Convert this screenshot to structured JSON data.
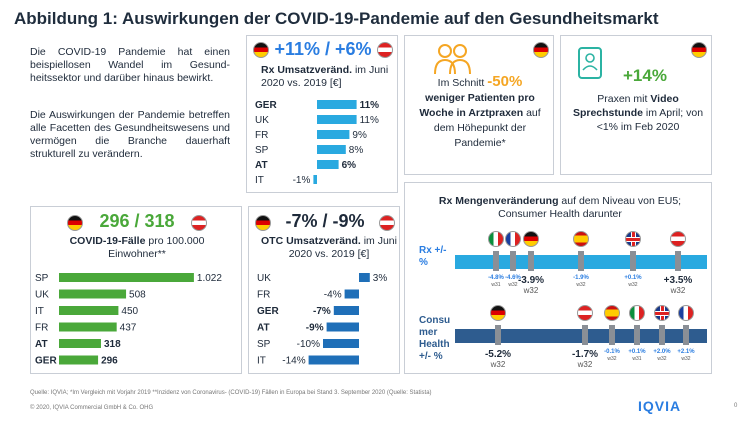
{
  "page": {
    "title": "Abbildung 1: Auswirkungen der COVID-19-Pandemie auf den Gesundheitsmarkt",
    "intro_p1": "Die COVID-19 Pandemie hat einen beispiellosen Wandel im Gesund- heitssektor und darüber hinaus bewirkt.",
    "intro_p2": "Die Auswirkungen der Pandemie betreffen alle Facetten des Gesundheitswesens und vermögen die Branche dauerhaft strukturell zu verändern.",
    "footnote": "Quelle: IQVIA; *Im Vergleich mit Vorjahr 2019 **Inzidenz von Coronavirus- (COVID-19) Fällen in Europa bei Stand 3. September 2020 (Quelle: Statista)",
    "copyright": "© 2020, IQVIA Commercial GmbH & Co. OHG",
    "logo": "IQVIA",
    "page_num": "0"
  },
  "rx_card": {
    "headline": "+11% / +6%",
    "sub_bold": "Rx Umsatzveränd.",
    "sub_rest": " im Juni 2020 vs. 2019 [€]"
  },
  "patients_card": {
    "prefix": "Im Schnitt ",
    "big": "-50%",
    "bold": "weniger Patienten pro Woche in Arztpraxen",
    "rest": " auf dem Höhepunkt der Pandemie*"
  },
  "video_card": {
    "big": "+14%",
    "text_a": "Praxen mit ",
    "text_bold": "Video Sprechstunde",
    "text_b": " im April; von <1% im Feb 2020"
  },
  "covid_card": {
    "headline": "296 / 318",
    "sub_bold": "COVID-19-Fälle",
    "sub_rest": " pro 100.000 Einwohner**"
  },
  "otc_card": {
    "headline": "-7% / -9%",
    "sub_bold": "OTC Umsatzveränd.",
    "sub_rest": " im Juni 2020 vs. 2019 [€]"
  },
  "volume_card": {
    "title_bold": "Rx Mengenveränderung",
    "title_rest": " auf dem Niveau von EU5; Consumer Health darunter",
    "rx_label": "Rx +/- %",
    "ch_label": "Consu mer Health +/- %",
    "rx_markers": [
      {
        "value": "-4.8%",
        "week": "w31",
        "flag": "it"
      },
      {
        "value": "-4.6%",
        "week": "w32",
        "flag": "fr"
      },
      {
        "value": "-3.9%",
        "week": "w32",
        "flag": "de"
      },
      {
        "value": "-1.9%",
        "week": "w32",
        "flag": "es"
      },
      {
        "value": "+0.1%",
        "week": "w32",
        "flag": "uk"
      },
      {
        "value": "+3.5%",
        "week": "w32",
        "flag": "at"
      }
    ],
    "ch_markers": [
      {
        "value": "-5.2%",
        "week": "w32",
        "flag": "de"
      },
      {
        "value": "-1.7%",
        "week": "w32",
        "flag": "at"
      },
      {
        "value": "-0.1%",
        "week": "w32",
        "flag": "es"
      },
      {
        "value": "+0.1%",
        "week": "w31",
        "flag": "it"
      },
      {
        "value": "+2.0%",
        "week": "w32",
        "flag": "uk"
      },
      {
        "value": "+2.1%",
        "week": "w32",
        "flag": "fr"
      }
    ]
  },
  "colors": {
    "accent_blue": "#2a7de1",
    "bar_blue": "#1f6fb8",
    "green": "#4aa83a",
    "rx_band": "#29a9e0",
    "ch_band": "#2e5c8f",
    "orange": "#f5a623"
  },
  "chart_data": [
    {
      "type": "bar",
      "title": "Rx Umsatzveränd. im Juni 2020 vs. 2019 [€]",
      "categories": [
        "GER",
        "UK",
        "FR",
        "SP",
        "AT",
        "IT"
      ],
      "values": [
        11,
        11,
        9,
        8,
        6,
        -1
      ],
      "value_labels": [
        "11%",
        "11%",
        "9%",
        "8%",
        "6%",
        "-1%"
      ]
    },
    {
      "type": "bar",
      "title": "COVID-19-Fälle pro 100.000 Einwohner**",
      "categories": [
        "SP",
        "UK",
        "IT",
        "FR",
        "AT",
        "GER"
      ],
      "values": [
        1022,
        508,
        450,
        437,
        318,
        296
      ],
      "value_labels": [
        "1.022",
        "508",
        "450",
        "437",
        "318",
        "296"
      ]
    },
    {
      "type": "bar",
      "title": "OTC Umsatzveränd. im Juni 2020 vs. 2019 [€]",
      "categories": [
        "UK",
        "FR",
        "GER",
        "AT",
        "SP",
        "IT"
      ],
      "values": [
        3,
        -4,
        -7,
        -9,
        -10,
        -14
      ],
      "value_labels": [
        "3%",
        "-4%",
        "-7%",
        "-9%",
        "-10%",
        "-14%"
      ]
    }
  ]
}
